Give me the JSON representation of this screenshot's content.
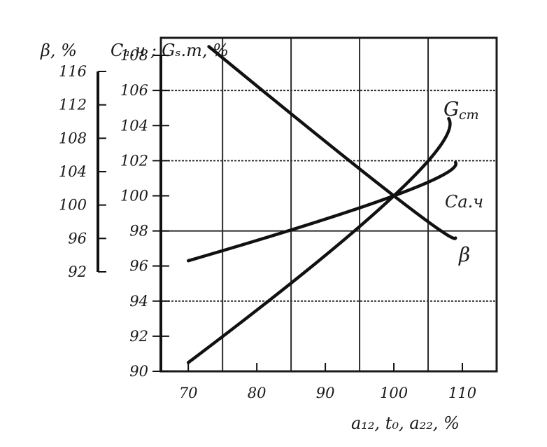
{
  "chart_data": {
    "type": "line",
    "title": "",
    "xlabel": "a₁₂, t₀, a₂₂, %",
    "ylabel_beta": "β, %",
    "ylabel_main": "Cₐ.ч ; Gₛ.т, %",
    "xlim": [
      66,
      115
    ],
    "ylim": [
      90,
      109
    ],
    "beta_lim": [
      92,
      116
    ],
    "grid": true,
    "x_ticks": [
      70,
      80,
      90,
      100,
      110
    ],
    "x_tick_labels": [
      "70",
      "80",
      "90",
      "100",
      "110"
    ],
    "y_ticks": [
      90,
      92,
      94,
      96,
      98,
      100,
      102,
      104,
      106,
      108
    ],
    "y_tick_labels": [
      "90",
      "92",
      "94",
      "96",
      "98",
      "100",
      "102",
      "104",
      "106",
      "108"
    ],
    "beta_ticks": [
      92,
      96,
      100,
      104,
      108,
      112,
      116
    ],
    "beta_tick_labels": [
      "92",
      "96",
      "100",
      "104",
      "108",
      "112",
      "116"
    ],
    "series": [
      {
        "name": "Gст",
        "x": [
          70,
          100,
          108
        ],
        "y": [
          90.5,
          100,
          104.4
        ]
      },
      {
        "name": "Cа.ч",
        "x": [
          70,
          100,
          109
        ],
        "y": [
          96.3,
          100,
          101.9
        ]
      },
      {
        "name": "β",
        "x": [
          73,
          100,
          109
        ],
        "y": [
          108.5,
          100,
          97.6
        ]
      }
    ],
    "series_labels": [
      "G",
      "ст",
      "Cа.ч",
      "β"
    ]
  }
}
